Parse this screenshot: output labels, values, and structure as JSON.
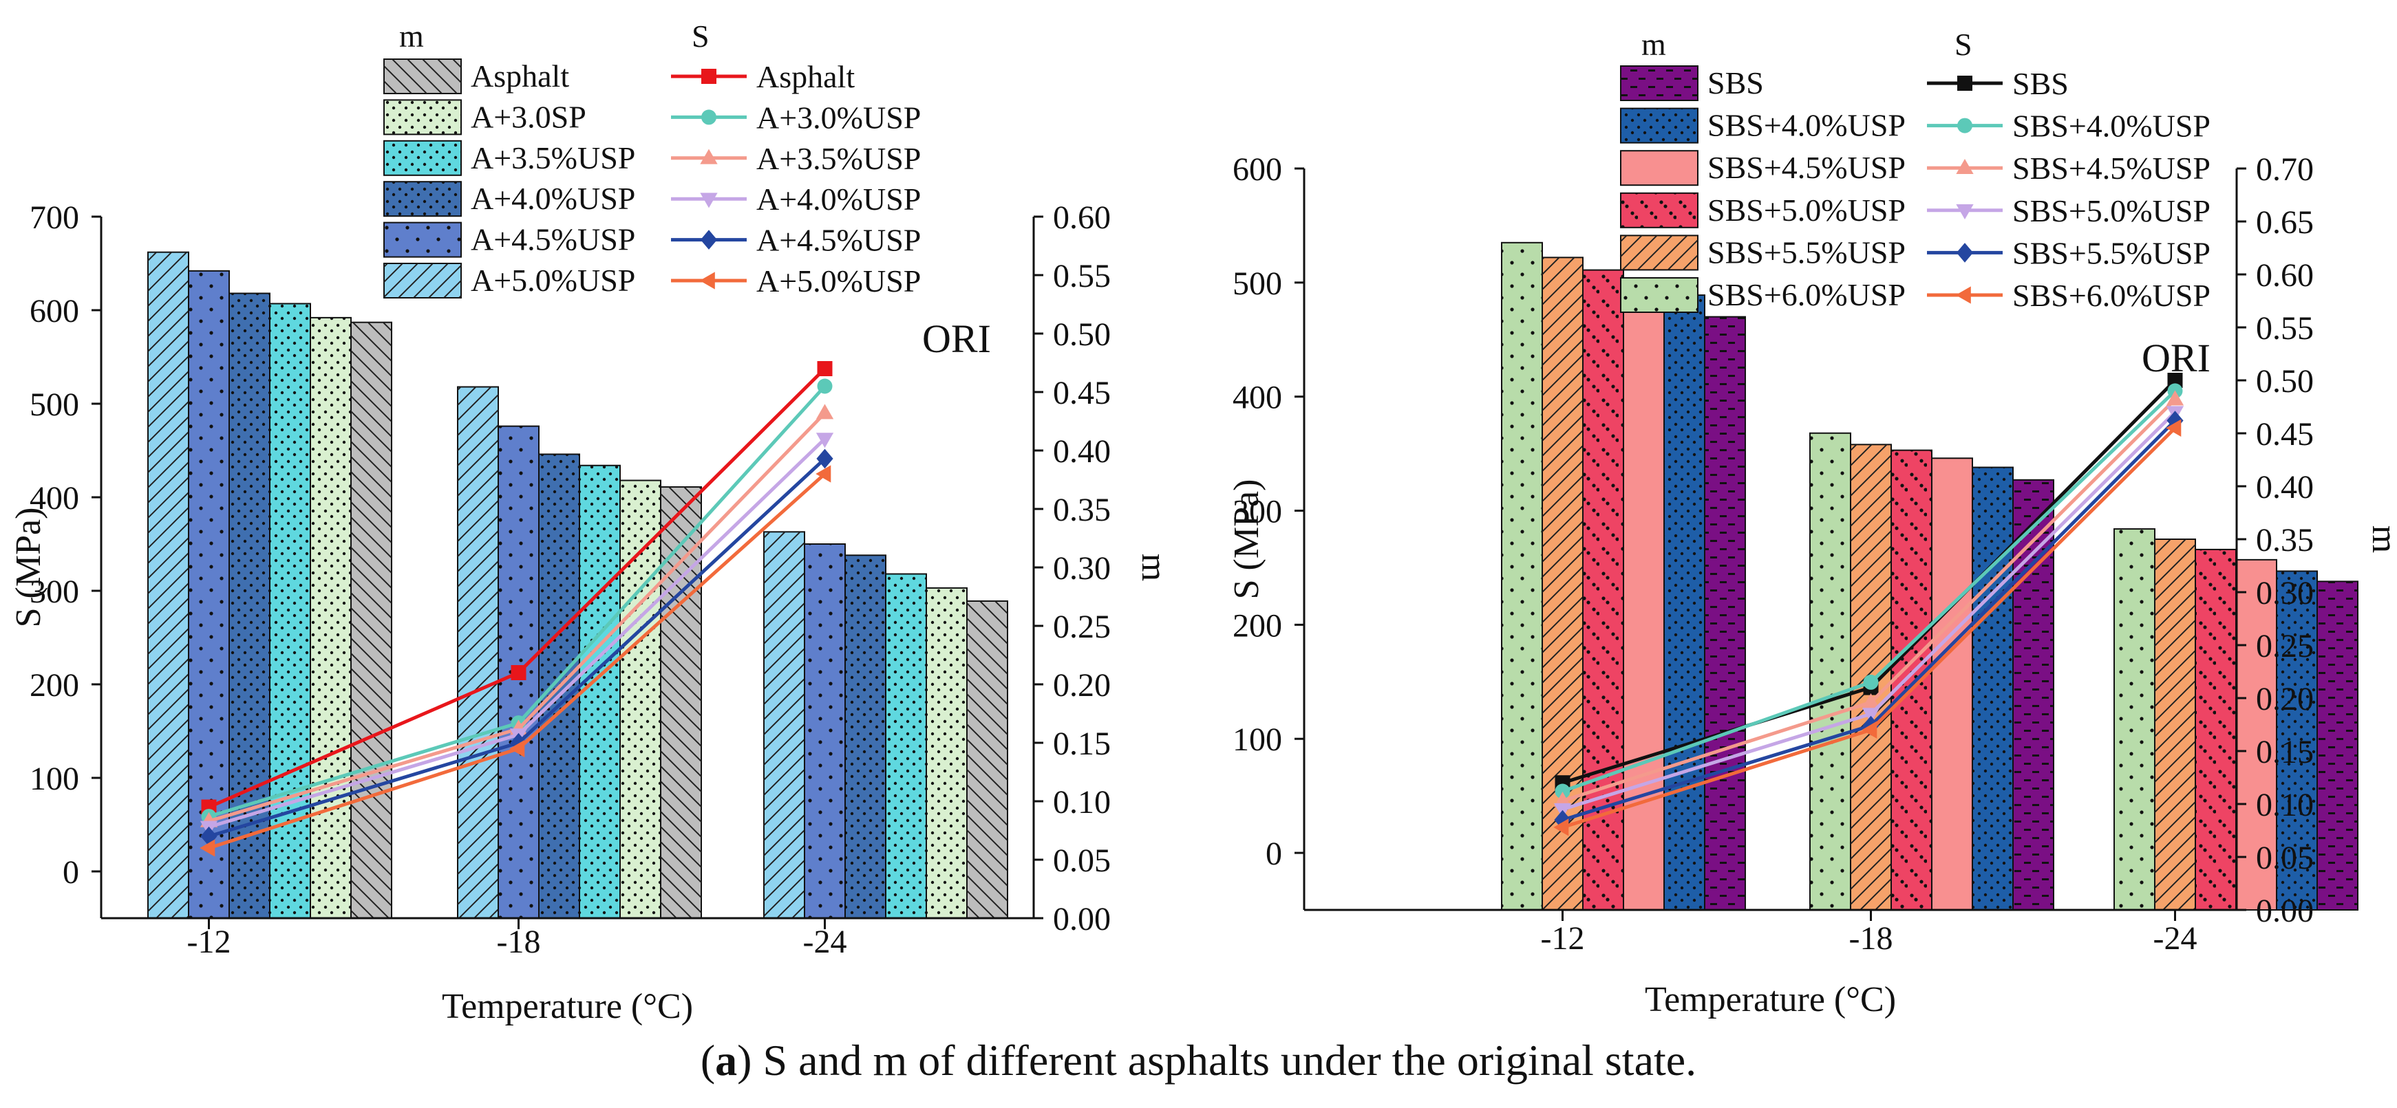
{
  "caption": {
    "label": "a",
    "text": "S and m of different asphalts under the original state."
  },
  "chart_data": [
    {
      "type": "bar",
      "title": "",
      "annotation": "ORI",
      "xlabel": "Temperature (°C)",
      "ylabel": "S (MPa)",
      "y2label": "m",
      "categories": [
        "-12",
        "-18",
        "-24"
      ],
      "ylim": [
        -50,
        700
      ],
      "yticks": [
        0,
        100,
        200,
        300,
        400,
        500,
        600,
        700
      ],
      "y2lim": [
        0.0,
        0.6
      ],
      "y2ticks": [
        "0.00",
        "0.05",
        "0.10",
        "0.15",
        "0.20",
        "0.25",
        "0.30",
        "0.35",
        "0.40",
        "0.45",
        "0.50",
        "0.55",
        "0.60"
      ],
      "legend_m_header": "m",
      "legend_s_header": "S",
      "bar_series": [
        {
          "name": "A+5.0%USP",
          "color": "#8fd3f0",
          "pattern": "hatch",
          "values": [
            662,
            518,
            363
          ]
        },
        {
          "name": "A+4.5%USP",
          "color": "#5f7fcc",
          "pattern": "dots-sparse",
          "values": [
            642,
            476,
            350
          ]
        },
        {
          "name": "A+4.0%USP",
          "color": "#3f6fb0",
          "pattern": "dots-fine",
          "values": [
            618,
            446,
            338
          ]
        },
        {
          "name": "A+3.5%USP",
          "color": "#5fd8df",
          "pattern": "dots-fine",
          "values": [
            607,
            434,
            318
          ]
        },
        {
          "name": "A+3.0SP",
          "color": "#d9f0d0",
          "pattern": "dots-fine",
          "values": [
            592,
            418,
            303
          ]
        },
        {
          "name": "Asphalt",
          "color": "#bdbdbd",
          "pattern": "hatch-rev",
          "values": [
            587,
            411,
            289
          ]
        }
      ],
      "bar_legend_order": [
        "Asphalt",
        "A+3.0SP",
        "A+3.5%USP",
        "A+4.0%USP",
        "A+4.5%USP",
        "A+5.0%USP"
      ],
      "line_series": [
        {
          "name": "Asphalt",
          "color": "#e8161b",
          "marker": "square",
          "values": [
            0.095,
            0.21,
            0.47
          ]
        },
        {
          "name": "A+3.0%USP",
          "color": "#5cc9b8",
          "marker": "circle",
          "values": [
            0.087,
            0.167,
            0.455
          ]
        },
        {
          "name": "A+3.5%USP",
          "color": "#f49a8c",
          "marker": "triangle-up",
          "values": [
            0.083,
            0.162,
            0.432
          ]
        },
        {
          "name": "A+4.0%USP",
          "color": "#c5a6e6",
          "marker": "triangle-down",
          "values": [
            0.078,
            0.157,
            0.41
          ]
        },
        {
          "name": "A+4.5%USP",
          "color": "#2446a0",
          "marker": "diamond",
          "values": [
            0.07,
            0.15,
            0.393
          ]
        },
        {
          "name": "A+5.0%USP",
          "color": "#f26a3b",
          "marker": "triangle-left",
          "values": [
            0.06,
            0.145,
            0.38
          ]
        }
      ]
    },
    {
      "type": "bar",
      "title": "",
      "annotation": "ORI",
      "xlabel": "Temperature (°C)",
      "ylabel": "S (MPa)",
      "y2label": "m",
      "categories": [
        "-12",
        "-18",
        "-24"
      ],
      "ylim": [
        -50,
        600
      ],
      "yticks": [
        0,
        100,
        200,
        300,
        400,
        500,
        600
      ],
      "y2lim": [
        0.0,
        0.7
      ],
      "y2ticks": [
        "0.00",
        "0.05",
        "0.10",
        "0.15",
        "0.20",
        "0.25",
        "0.30",
        "0.35",
        "0.40",
        "0.45",
        "0.50",
        "0.55",
        "0.60",
        "0.65",
        "0.70"
      ],
      "legend_m_header": "m",
      "legend_s_header": "S",
      "bar_series": [
        {
          "name": "SBS+6.0%USP",
          "color": "#b8dcaa",
          "pattern": "dots-sparse",
          "values": [
            535,
            368,
            284
          ]
        },
        {
          "name": "SBS+5.5%USP",
          "color": "#f6a26a",
          "pattern": "hatch",
          "values": [
            522,
            358,
            275
          ]
        },
        {
          "name": "SBS+5.0%USP",
          "color": "#ee4464",
          "pattern": "dots-pairs",
          "values": [
            511,
            353,
            266
          ]
        },
        {
          "name": "SBS+4.5%USP",
          "color": "#f89090",
          "pattern": "none",
          "values": [
            500,
            346,
            257
          ]
        },
        {
          "name": "SBS+4.0%USP",
          "color": "#1e5ea8",
          "pattern": "dots-fine",
          "values": [
            489,
            338,
            247
          ]
        },
        {
          "name": "SBS",
          "color": "#7a0f84",
          "pattern": "dashes",
          "values": [
            470,
            327,
            238
          ]
        }
      ],
      "bar_legend_order": [
        "SBS",
        "SBS+4.0%USP",
        "SBS+4.5%USP",
        "SBS+5.0%USP",
        "SBS+5.5%USP",
        "SBS+6.0%USP"
      ],
      "line_series": [
        {
          "name": "SBS",
          "color": "#111111",
          "marker": "square",
          "values": [
            0.12,
            0.21,
            0.5
          ]
        },
        {
          "name": "SBS+4.0%USP",
          "color": "#5cc9b8",
          "marker": "circle",
          "values": [
            0.112,
            0.215,
            0.49
          ]
        },
        {
          "name": "SBS+4.5%USP",
          "color": "#f49a8c",
          "marker": "triangle-up",
          "values": [
            0.103,
            0.196,
            0.482
          ]
        },
        {
          "name": "SBS+5.0%USP",
          "color": "#c5a6e6",
          "marker": "triangle-down",
          "values": [
            0.095,
            0.185,
            0.47
          ]
        },
        {
          "name": "SBS+5.5%USP",
          "color": "#2446a0",
          "marker": "diamond",
          "values": [
            0.085,
            0.174,
            0.462
          ]
        },
        {
          "name": "SBS+6.0%USP",
          "color": "#f26a3b",
          "marker": "triangle-left",
          "values": [
            0.078,
            0.17,
            0.455
          ]
        }
      ]
    }
  ]
}
